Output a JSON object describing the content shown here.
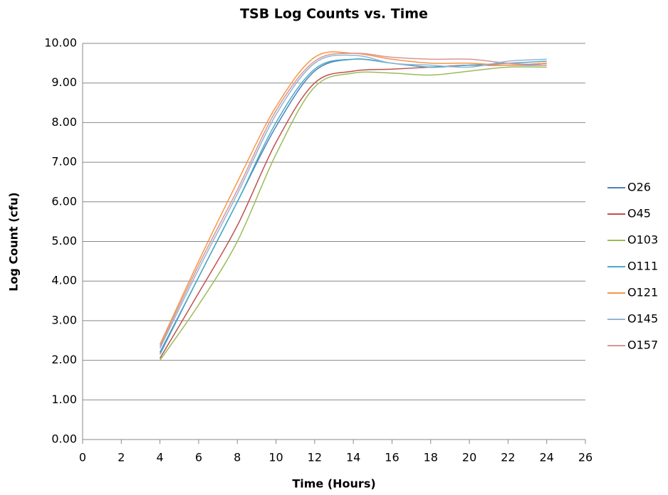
{
  "chart_data": {
    "type": "line",
    "title": "TSB Log Counts vs. Time",
    "x_label": "Time (Hours)",
    "y_label": "Log Count (cfu)",
    "x": [
      4,
      6,
      8,
      10,
      12,
      14,
      16,
      18,
      20,
      22,
      24
    ],
    "series": [
      {
        "name": "O26",
        "color": "#4f81bd",
        "values": [
          2.2,
          4.1,
          6.0,
          7.9,
          9.3,
          9.6,
          9.5,
          9.4,
          9.45,
          9.45,
          9.45
        ]
      },
      {
        "name": "O45",
        "color": "#c0504d",
        "values": [
          2.05,
          3.7,
          5.4,
          7.5,
          9.0,
          9.3,
          9.35,
          9.4,
          9.45,
          9.45,
          9.5
        ]
      },
      {
        "name": "O103",
        "color": "#9bbb59",
        "values": [
          2.0,
          3.4,
          5.0,
          7.2,
          8.9,
          9.25,
          9.25,
          9.2,
          9.3,
          9.4,
          9.4
        ]
      },
      {
        "name": "O111",
        "color": "#4bacc6",
        "values": [
          2.15,
          4.1,
          6.0,
          8.0,
          9.35,
          9.6,
          9.5,
          9.4,
          9.45,
          9.5,
          9.55
        ]
      },
      {
        "name": "O121",
        "color": "#f79646",
        "values": [
          2.4,
          4.5,
          6.5,
          8.4,
          9.65,
          9.75,
          9.6,
          9.5,
          9.5,
          9.45,
          9.5
        ]
      },
      {
        "name": "O145",
        "color": "#95b3d7",
        "values": [
          2.3,
          4.3,
          6.2,
          8.2,
          9.5,
          9.7,
          9.5,
          9.45,
          9.4,
          9.55,
          9.6
        ]
      },
      {
        "name": "O157",
        "color": "#d99694",
        "values": [
          2.35,
          4.4,
          6.3,
          8.3,
          9.55,
          9.75,
          9.65,
          9.6,
          9.6,
          9.5,
          9.45
        ]
      }
    ],
    "xlim": [
      0,
      26
    ],
    "xticks": [
      0,
      2,
      4,
      6,
      8,
      10,
      12,
      14,
      16,
      18,
      20,
      22,
      24,
      26
    ],
    "ylim": [
      0,
      10
    ],
    "yticks": [
      {
        "value": 0,
        "label": "0.00"
      },
      {
        "value": 1,
        "label": "1.00"
      },
      {
        "value": 2,
        "label": "2.00"
      },
      {
        "value": 3,
        "label": "3.00"
      },
      {
        "value": 4,
        "label": "4.00"
      },
      {
        "value": 5,
        "label": "5.00"
      },
      {
        "value": 6,
        "label": "6.00"
      },
      {
        "value": 7,
        "label": "7.00"
      },
      {
        "value": 8,
        "label": "8.00"
      },
      {
        "value": 9,
        "label": "9.00"
      },
      {
        "value": 10,
        "label": "10.00"
      }
    ],
    "grid": true,
    "legend": "right",
    "smooth": true
  }
}
